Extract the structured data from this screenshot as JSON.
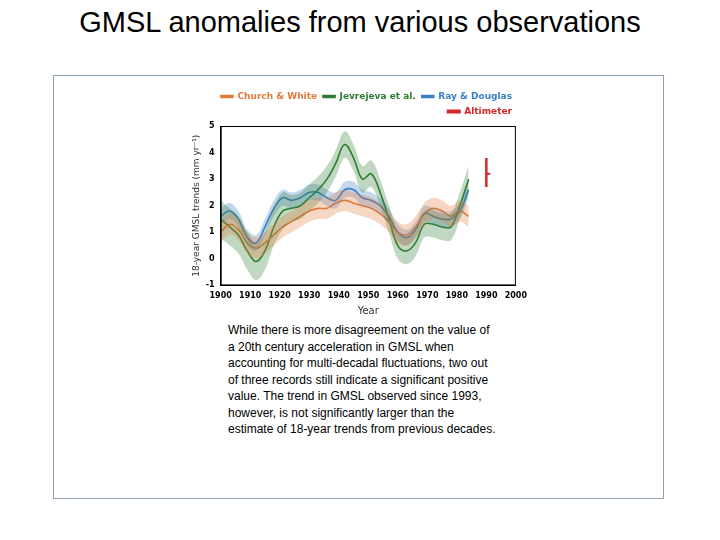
{
  "slide_title": "GMSL anomalies from various observations",
  "caption": [
    "While there is more disagreement on the value of",
    "a 20th century acceleration in GMSL when",
    "accounting for multi-decadal fluctuations, two out",
    "of three records still indicate a significant positive",
    "value. The trend in GMSL observed since 1993,",
    "however, is not significantly larger than the",
    "estimate of 18-year trends from previous decades."
  ],
  "chart_data": {
    "type": "line",
    "x_label": "Year",
    "y_label": "18-year GMSL trends (mm yr⁻¹)",
    "xlim": [
      1900,
      2000
    ],
    "xticks": [
      1900,
      1910,
      1920,
      1930,
      1940,
      1950,
      1960,
      1970,
      1980,
      1990,
      2000
    ],
    "ylim": [
      -1,
      5
    ],
    "yticks": [
      -1,
      0,
      1,
      2,
      3,
      4,
      5
    ],
    "grid": false,
    "legend": "upper right",
    "x": [
      1900,
      1903,
      1906,
      1909,
      1912,
      1915,
      1918,
      1921,
      1924,
      1927,
      1930,
      1933,
      1936,
      1939,
      1942,
      1945,
      1948,
      1951,
      1954,
      1957,
      1960,
      1963,
      1966,
      1969,
      1972,
      1975,
      1978,
      1981,
      1984
    ],
    "series": [
      {
        "name": "Church & White",
        "color": "#e07b39",
        "type": "line",
        "line_style": "solid",
        "values": [
          1.0,
          1.3,
          1.1,
          0.6,
          0.4,
          0.6,
          0.9,
          1.2,
          1.4,
          1.6,
          1.8,
          1.9,
          1.9,
          2.1,
          2.2,
          2.1,
          2.0,
          1.9,
          1.7,
          1.4,
          1.0,
          0.9,
          1.2,
          1.7,
          1.9,
          1.8,
          1.6,
          1.8,
          1.6
        ],
        "lower": [
          0.6,
          0.9,
          0.7,
          0.2,
          0.0,
          0.2,
          0.5,
          0.8,
          1.0,
          1.2,
          1.4,
          1.5,
          1.5,
          1.7,
          1.8,
          1.7,
          1.6,
          1.5,
          1.3,
          1.0,
          0.6,
          0.5,
          0.8,
          1.3,
          1.5,
          1.4,
          1.2,
          1.4,
          1.2
        ],
        "upper": [
          1.4,
          1.7,
          1.5,
          1.0,
          0.8,
          1.0,
          1.3,
          1.6,
          1.8,
          2.0,
          2.2,
          2.3,
          2.3,
          2.5,
          2.6,
          2.5,
          2.4,
          2.3,
          2.1,
          1.8,
          1.4,
          1.3,
          1.6,
          2.1,
          2.3,
          2.2,
          2.0,
          2.2,
          2.0
        ]
      },
      {
        "name": "Jevrejeva et al.",
        "color": "#2e7d32",
        "type": "line",
        "line_style": "solid",
        "values": [
          1.5,
          1.2,
          0.9,
          0.3,
          -0.1,
          0.3,
          1.2,
          1.8,
          1.9,
          2.0,
          2.3,
          2.6,
          3.0,
          3.6,
          4.3,
          3.8,
          3.0,
          3.2,
          2.5,
          1.5,
          0.5,
          0.3,
          0.6,
          1.3,
          1.3,
          1.2,
          1.2,
          2.0,
          3.0
        ],
        "lower": [
          0.8,
          0.5,
          0.2,
          -0.4,
          -0.8,
          -0.4,
          0.5,
          1.1,
          1.4,
          1.5,
          1.8,
          2.1,
          2.5,
          3.1,
          3.8,
          3.3,
          2.5,
          2.7,
          2.0,
          1.0,
          0.0,
          -0.2,
          0.1,
          0.8,
          0.8,
          0.7,
          0.7,
          1.5,
          2.5
        ],
        "upper": [
          2.2,
          1.9,
          1.6,
          1.0,
          0.6,
          1.0,
          1.9,
          2.5,
          2.4,
          2.5,
          2.8,
          3.1,
          3.5,
          4.1,
          4.8,
          4.3,
          3.5,
          3.7,
          3.0,
          2.0,
          1.0,
          0.8,
          1.1,
          1.8,
          1.8,
          1.7,
          1.7,
          2.5,
          3.5
        ]
      },
      {
        "name": "Ray & Douglas",
        "color": "#3a7fc4",
        "type": "line",
        "line_style": "solid",
        "values": [
          1.6,
          1.8,
          1.5,
          0.8,
          0.6,
          1.2,
          1.9,
          2.3,
          2.2,
          2.3,
          2.5,
          2.5,
          2.3,
          2.2,
          2.6,
          2.6,
          2.3,
          2.2,
          2.0,
          1.6,
          1.0,
          0.8,
          1.1,
          1.7,
          1.6,
          1.5,
          1.5,
          1.8,
          2.6
        ],
        "lower": [
          1.3,
          1.5,
          1.2,
          0.5,
          0.3,
          0.9,
          1.6,
          2.0,
          1.9,
          2.0,
          2.2,
          2.2,
          2.0,
          1.9,
          2.3,
          2.3,
          2.0,
          1.9,
          1.7,
          1.3,
          0.7,
          0.5,
          0.8,
          1.4,
          1.3,
          1.2,
          1.2,
          1.5,
          2.3
        ],
        "upper": [
          1.9,
          2.1,
          1.8,
          1.1,
          0.9,
          1.5,
          2.2,
          2.6,
          2.5,
          2.6,
          2.8,
          2.8,
          2.6,
          2.5,
          2.9,
          2.9,
          2.6,
          2.5,
          2.3,
          1.9,
          1.3,
          1.1,
          1.4,
          2.0,
          1.9,
          1.8,
          1.8,
          2.1,
          2.9
        ]
      },
      {
        "name": "Altimeter",
        "color": "#d62728",
        "type": "scatter",
        "marker": "dash",
        "x": [
          1990
        ],
        "values": [
          3.2
        ],
        "lower": [
          2.7
        ],
        "upper": [
          3.8
        ]
      }
    ]
  }
}
